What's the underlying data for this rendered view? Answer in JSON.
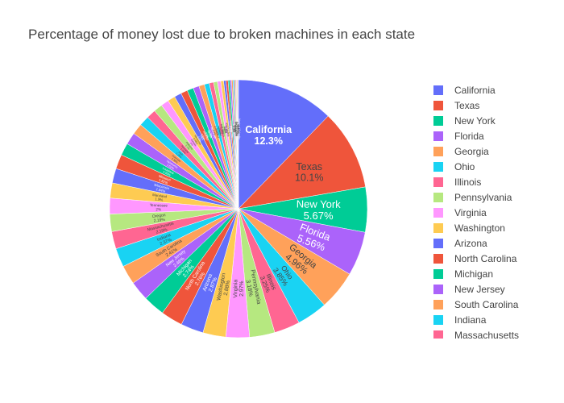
{
  "chart_data": {
    "type": "pie",
    "title": "Percentage of money lost due to broken machines in each state",
    "sort": "descending",
    "direction": "clockwise",
    "legend_position": "right",
    "labels": [
      "California",
      "Texas",
      "New York",
      "Florida",
      "Georgia",
      "Ohio",
      "Illinois",
      "Pennsylvania",
      "Virginia",
      "Washington",
      "Arizona",
      "North Carolina",
      "Michigan",
      "New Jersey",
      "South Carolina",
      "Indiana",
      "Massachusetts",
      "Oregon",
      "Tennessee",
      "Maryland",
      "Wisconsin",
      "Missouri",
      "Louisiana",
      "Oklahoma",
      "Colorado",
      "Utah",
      "Kentucky",
      "Alabama",
      "Kansas",
      "Minnesota",
      "Iowa",
      "Arkansas",
      "Nevada",
      "Mississippi",
      "Connecticut",
      "Nebraska",
      "New Mexico",
      "Idaho",
      "West Virginia",
      "Hawaii",
      "New Hampshire",
      "Maine",
      "Montana",
      "Delaware",
      "Rhode Island",
      "South Dakota",
      "North Dakota",
      "Alaska",
      "Wyoming",
      "Vermont",
      "District of Columbia"
    ],
    "values": [
      12.3,
      10.1,
      5.67,
      5.56,
      4.96,
      3.85,
      3.25,
      3.18,
      2.97,
      2.88,
      2.87,
      2.76,
      2.74,
      2.46,
      2.41,
      2.37,
      2.19,
      2.19,
      2.0,
      1.9,
      1.84,
      1.82,
      1.55,
      1.52,
      1.38,
      1.26,
      1.18,
      1.1,
      1.0,
      0.95,
      0.9,
      0.85,
      0.8,
      0.75,
      0.7,
      0.62,
      0.55,
      0.48,
      0.42,
      0.36,
      0.3,
      0.26,
      0.23,
      0.2,
      0.18,
      0.16,
      0.14,
      0.12,
      0.1,
      0.09,
      0.08
    ],
    "display_labels": [
      "12.3%",
      "10.1%",
      "5.67%",
      "5.56%",
      "4.96%",
      "3.85%",
      "3.25%",
      "3.18%",
      "2.97%",
      "2.88%",
      "2.87%",
      "2.76%",
      "2.74%",
      "2.46%",
      "2.41%",
      "2.37%",
      "2.19%",
      "2.19%",
      "2%",
      "1.9%",
      "1.84%",
      "1.82%",
      "1.55%",
      "1.52%",
      "1.38%",
      "1.26%",
      "1.18%",
      "1.1%",
      "1%",
      "0.95%",
      "0.9%",
      "0.85%",
      "0.8%",
      "0.75%",
      "0.7%",
      "0.62%",
      "0.55%",
      "0.48%",
      "0.42%",
      "0.36%",
      "0.3%",
      "0.26%",
      "0.23%",
      "0.2%",
      "0.18%",
      "0.16%",
      "0.14%",
      "0.12%",
      "0.1%",
      "0.09%",
      "0.08%"
    ],
    "colors": [
      "#636efa",
      "#EF553B",
      "#00cc96",
      "#ab63fa",
      "#FFA15A",
      "#19d3f3",
      "#FF6692",
      "#B6E880",
      "#FF97FF",
      "#FECB52"
    ],
    "legend_visible_count": 17
  }
}
